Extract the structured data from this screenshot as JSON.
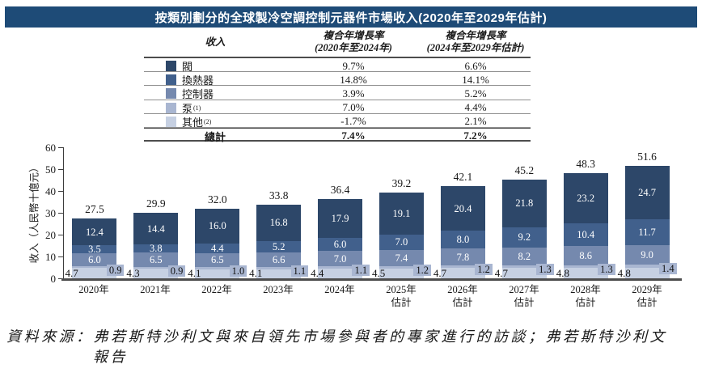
{
  "title": "按類別劃分的全球製冷空調控制元器件市場收入(2020年至2029年估計)",
  "banner_color": "#1e4b77",
  "table": {
    "header": {
      "revenue": "收入",
      "cagr1_line1": "複合年增長率",
      "cagr1_line2": "(2020年至2024年)",
      "cagr2_line1": "複合年增長率",
      "cagr2_line2": "(2024年至2029年估計)"
    },
    "rows": [
      {
        "label": "閥",
        "sup": "",
        "cagr1": "9.7%",
        "cagr2": "6.6%",
        "color": "#2d4769"
      },
      {
        "label": "換熱器",
        "sup": "",
        "cagr1": "14.8%",
        "cagr2": "14.1%",
        "color": "#41608c"
      },
      {
        "label": "控制器",
        "sup": "",
        "cagr1": "3.9%",
        "cagr2": "5.2%",
        "color": "#7589ae"
      },
      {
        "label": "泵",
        "sup": "(1)",
        "cagr1": "7.0%",
        "cagr2": "4.4%",
        "color": "#a9b6d1"
      },
      {
        "label": "其他",
        "sup": "(2)",
        "cagr1": "-1.7%",
        "cagr2": "2.1%",
        "color": "#c6d0e2"
      }
    ],
    "total": {
      "label": "總計",
      "cagr1": "7.4%",
      "cagr2": "7.2%"
    }
  },
  "chart_data": {
    "type": "bar",
    "stacked": true,
    "title": "按類別劃分的全球製冷空調控制元器件市場收入(2020年至2029年估計)",
    "ylabel": "收入（人民幣十億元）",
    "xlabel": "",
    "ylim": [
      0,
      60
    ],
    "yticks": [
      0,
      10,
      20,
      30,
      40,
      50,
      60
    ],
    "grid": false,
    "legend_position": "table-above-left",
    "categories": [
      "2020年",
      "2021年",
      "2022年",
      "2023年",
      "2024年",
      "2025年估計",
      "2026年估計",
      "2027年估計",
      "2028年估計",
      "2029年估計"
    ],
    "xlabels": [
      {
        "line1": "2020年",
        "line2": ""
      },
      {
        "line1": "2021年",
        "line2": ""
      },
      {
        "line1": "2022年",
        "line2": ""
      },
      {
        "line1": "2023年",
        "line2": ""
      },
      {
        "line1": "2024年",
        "line2": ""
      },
      {
        "line1": "2025年",
        "line2": "估計"
      },
      {
        "line1": "2026年",
        "line2": "估計"
      },
      {
        "line1": "2027年",
        "line2": "估計"
      },
      {
        "line1": "2028年",
        "line2": "估計"
      },
      {
        "line1": "2029年",
        "line2": "估計"
      }
    ],
    "series": [
      {
        "name": "閥",
        "key": "valve",
        "color": "#2d4769",
        "values": [
          12.4,
          14.4,
          16.0,
          16.8,
          17.9,
          19.1,
          20.4,
          21.8,
          23.2,
          24.7
        ],
        "value_labels": [
          "12.4",
          "14.4",
          "16.0",
          "16.8",
          "17.9",
          "19.1",
          "20.4",
          "21.8",
          "23.2",
          "24.7"
        ]
      },
      {
        "name": "換熱器",
        "key": "heat-exchanger",
        "color": "#41608c",
        "values": [
          3.5,
          3.8,
          4.4,
          5.2,
          6.0,
          7.0,
          8.0,
          9.2,
          10.4,
          11.7
        ],
        "value_labels": [
          "3.5",
          "3.8",
          "4.4",
          "5.2",
          "6.0",
          "7.0",
          "8.0",
          "9.2",
          "10.4",
          "11.7"
        ]
      },
      {
        "name": "控制器",
        "key": "controller",
        "color": "#7589ae",
        "values": [
          6.0,
          6.5,
          6.5,
          6.6,
          7.0,
          7.4,
          7.8,
          8.2,
          8.6,
          9.0
        ],
        "value_labels": [
          "6.0",
          "6.5",
          "6.5",
          "6.6",
          "7.0",
          "7.4",
          "7.8",
          "8.2",
          "8.6",
          "9.0"
        ]
      },
      {
        "name": "泵",
        "key": "pump",
        "color": "#a9b6d1",
        "values": [
          0.9,
          0.9,
          1.0,
          1.1,
          1.1,
          1.2,
          1.2,
          1.3,
          1.3,
          1.4
        ],
        "value_labels": [
          "0.9",
          "0.9",
          "1.0",
          "1.1",
          "1.1",
          "1.2",
          "1.2",
          "1.3",
          "1.3",
          "1.4"
        ]
      },
      {
        "name": "其他",
        "key": "others",
        "color": "#c6d0e2",
        "values": [
          4.7,
          4.3,
          4.1,
          4.1,
          4.4,
          4.5,
          4.7,
          4.7,
          4.8,
          4.8
        ],
        "value_labels": [
          "4.7",
          "4.3",
          "4.1",
          "4.1",
          "4.4",
          "4.5",
          "4.7",
          "4.7",
          "4.8",
          "4.8"
        ]
      }
    ],
    "totals": [
      27.5,
      29.9,
      32.0,
      33.8,
      36.4,
      39.2,
      42.1,
      45.2,
      48.3,
      51.6
    ],
    "totals_labels": [
      "27.5",
      "29.9",
      "32.0",
      "33.8",
      "36.4",
      "39.2",
      "42.1",
      "45.2",
      "48.3",
      "51.6"
    ]
  },
  "source": {
    "line1": "資料來源：弗若斯特沙利文與來自領先市場參與者的專家進行的訪談；弗若斯特沙利文",
    "line2": "報告"
  }
}
